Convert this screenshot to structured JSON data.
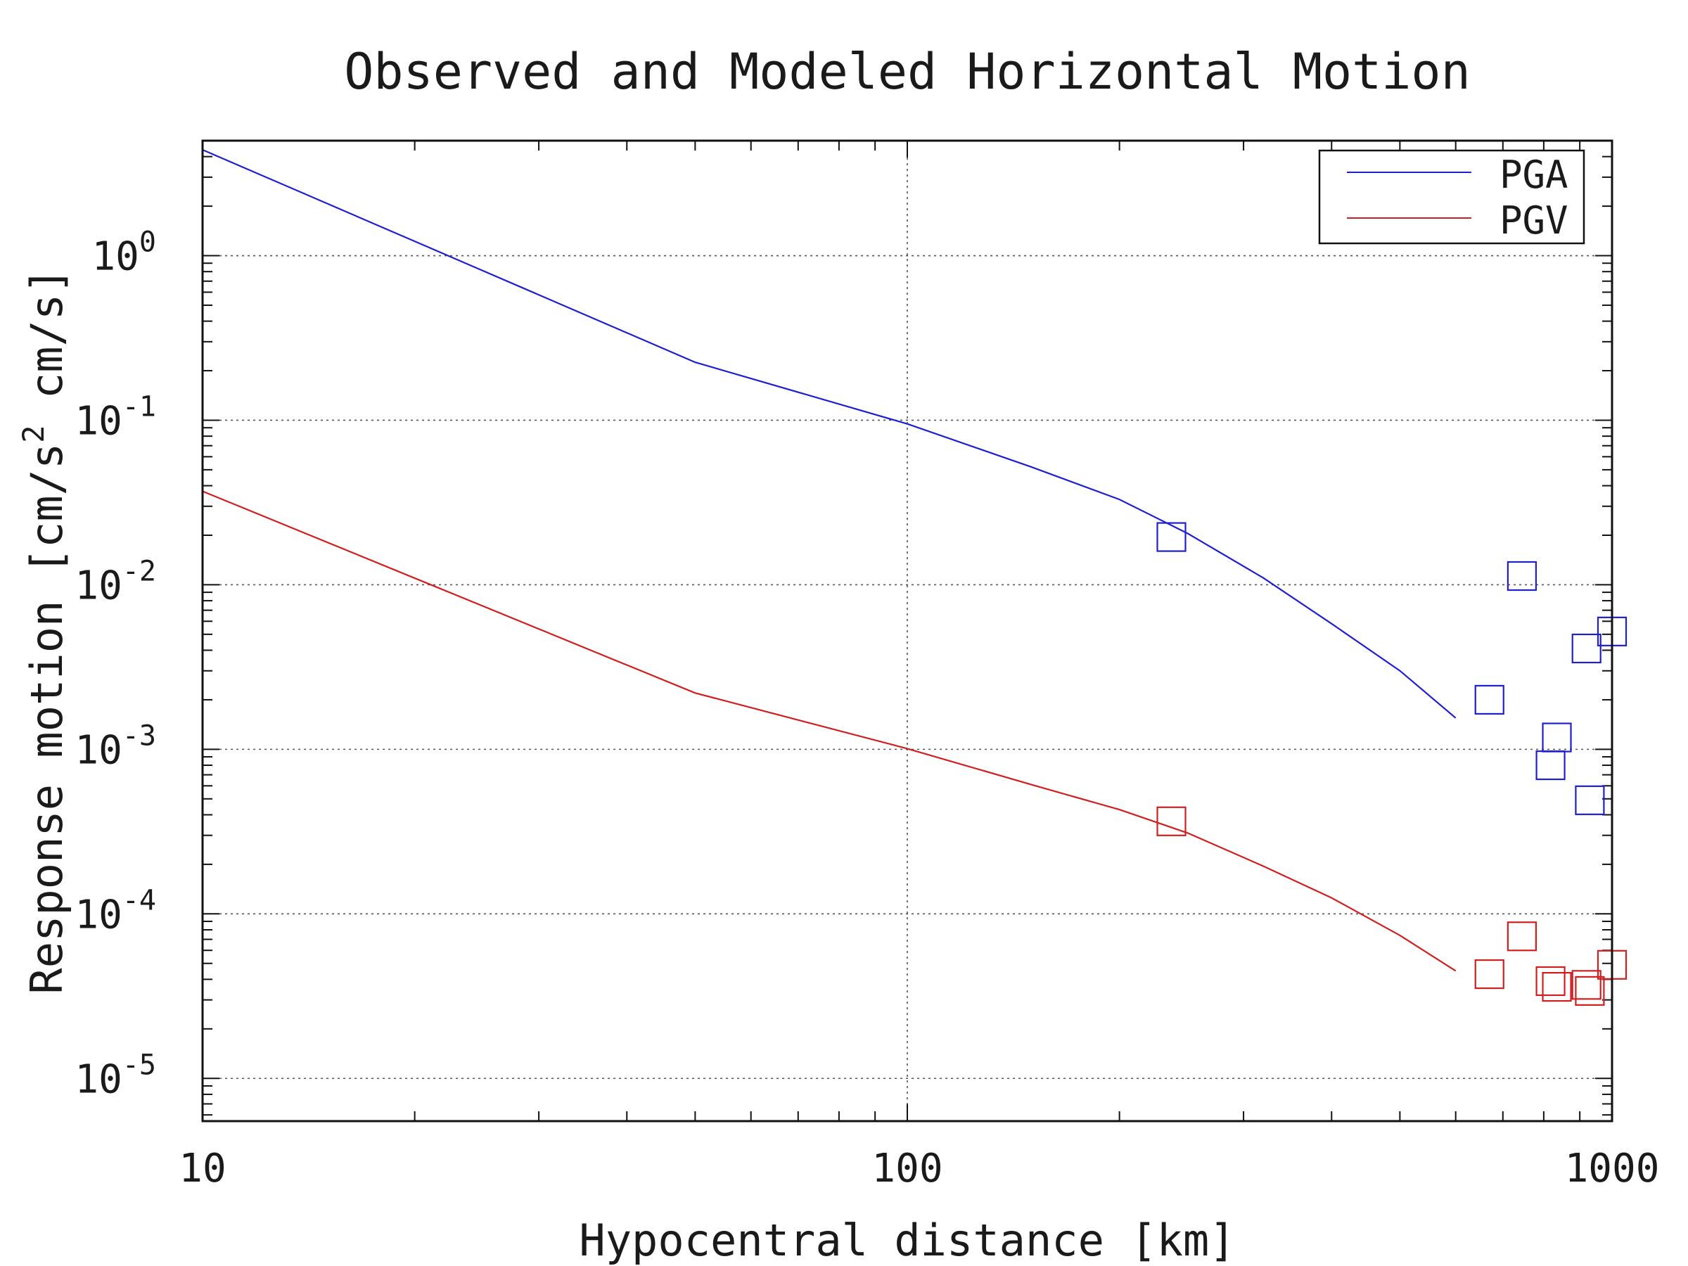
{
  "chart_data": {
    "type": "scatter",
    "title": "Observed and Modeled Horizontal Motion",
    "xlabel": "Hypocentral distance [km]",
    "ylabel": "Response motion [cm/s",
    "ylabel_sup": "2",
    "ylabel_tail": " cm/s]",
    "xscale": "log",
    "yscale": "log",
    "xlim": [
      10,
      1000
    ],
    "ylim": [
      5.5e-06,
      5.0
    ],
    "grid": true,
    "legend_position": "top-right",
    "x_ticks": [
      {
        "value": 10,
        "label": "10"
      },
      {
        "value": 100,
        "label": "100"
      },
      {
        "value": 1000,
        "label": "1000"
      }
    ],
    "y_ticks": [
      {
        "value": 1,
        "base": "10",
        "exp": "0"
      },
      {
        "value": 0.1,
        "base": "10",
        "exp": "-1"
      },
      {
        "value": 0.01,
        "base": "10",
        "exp": "-2"
      },
      {
        "value": 0.001,
        "base": "10",
        "exp": "-3"
      },
      {
        "value": 0.0001,
        "base": "10",
        "exp": "-4"
      },
      {
        "value": 1e-05,
        "base": "10",
        "exp": "-5"
      }
    ],
    "series": [
      {
        "name": "PGA",
        "color": "#1f1fd0",
        "model_curve": {
          "x": [
            10,
            50,
            100,
            150,
            200,
            250,
            320,
            400,
            500,
            600
          ],
          "y": [
            4.4,
            0.225,
            0.095,
            0.052,
            0.033,
            0.0205,
            0.011,
            0.0058,
            0.003,
            0.00155
          ]
        },
        "observed": {
          "x": [
            237,
            670,
            745,
            818,
            835,
            920,
            930,
            1000
          ],
          "y": [
            0.0195,
            0.002,
            0.0113,
            0.0008,
            0.00118,
            0.0041,
            0.00049,
            0.0052
          ]
        }
      },
      {
        "name": "PGV",
        "color": "#d01f1f",
        "model_curve": {
          "x": [
            10,
            50,
            100,
            150,
            200,
            250,
            320,
            400,
            500,
            600
          ],
          "y": [
            0.037,
            0.0022,
            0.00101,
            0.00061,
            0.00043,
            0.00031,
            0.000195,
            0.000125,
            7.4e-05,
            4.5e-05
          ]
        },
        "observed": {
          "x": [
            237,
            670,
            745,
            818,
            835,
            920,
            930,
            1000
          ],
          "y": [
            0.000365,
            4.3e-05,
            7.3e-05,
            3.9e-05,
            3.6e-05,
            3.7e-05,
            3.4e-05,
            4.9e-05
          ]
        }
      }
    ]
  }
}
